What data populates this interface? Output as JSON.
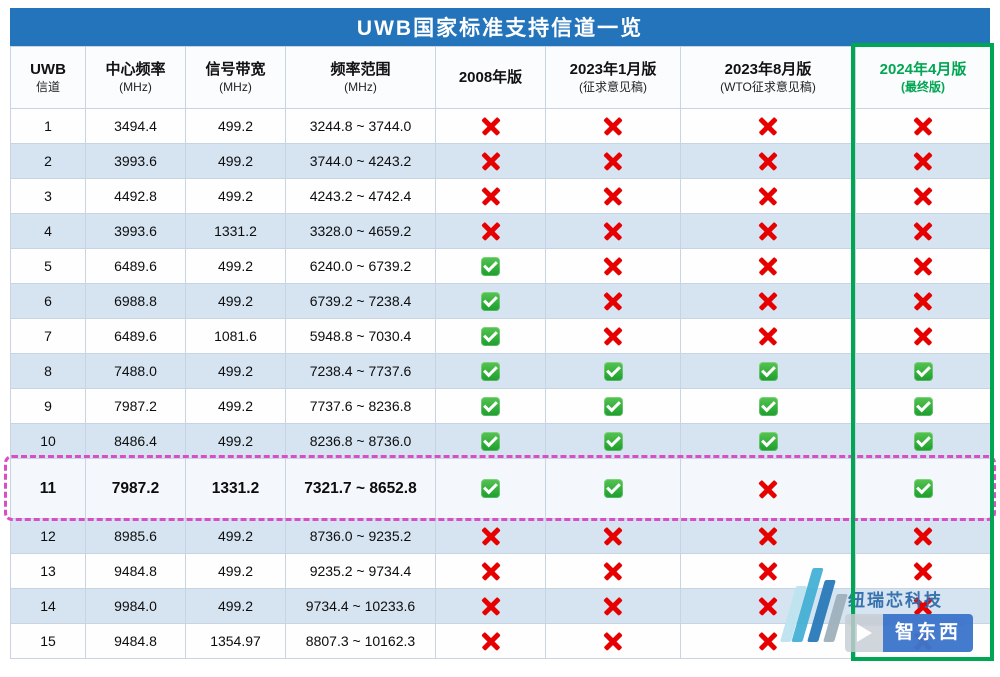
{
  "title": "UWB国家标准支持信道一览",
  "chart_data": {
    "type": "table",
    "title": "UWB国家标准支持信道一览",
    "columns": [
      {
        "line1": "UWB",
        "line2": "信道"
      },
      {
        "line1": "中心频率",
        "line2": "(MHz)"
      },
      {
        "line1": "信号带宽",
        "line2": "(MHz)"
      },
      {
        "line1": "频率范围",
        "line2": "(MHz)"
      },
      {
        "line1": "2008年版",
        "line2": ""
      },
      {
        "line1": "2023年1月版",
        "line2": "(征求意见稿)"
      },
      {
        "line1": "2023年8月版",
        "line2": "(WTO征求意见稿)"
      },
      {
        "line1": "2024年4月版",
        "line2": "(最终版)"
      }
    ],
    "rows": [
      {
        "channel": "1",
        "center_mhz": "3494.4",
        "bandwidth_mhz": "499.2",
        "range_mhz": "3244.8 ~ 3744.0",
        "support": [
          false,
          false,
          false,
          false
        ],
        "highlight": false
      },
      {
        "channel": "2",
        "center_mhz": "3993.6",
        "bandwidth_mhz": "499.2",
        "range_mhz": "3744.0 ~ 4243.2",
        "support": [
          false,
          false,
          false,
          false
        ],
        "highlight": false
      },
      {
        "channel": "3",
        "center_mhz": "4492.8",
        "bandwidth_mhz": "499.2",
        "range_mhz": "4243.2 ~ 4742.4",
        "support": [
          false,
          false,
          false,
          false
        ],
        "highlight": false
      },
      {
        "channel": "4",
        "center_mhz": "3993.6",
        "bandwidth_mhz": "1331.2",
        "range_mhz": "3328.0 ~ 4659.2",
        "support": [
          false,
          false,
          false,
          false
        ],
        "highlight": false
      },
      {
        "channel": "5",
        "center_mhz": "6489.6",
        "bandwidth_mhz": "499.2",
        "range_mhz": "6240.0 ~ 6739.2",
        "support": [
          true,
          false,
          false,
          false
        ],
        "highlight": false
      },
      {
        "channel": "6",
        "center_mhz": "6988.8",
        "bandwidth_mhz": "499.2",
        "range_mhz": "6739.2 ~ 7238.4",
        "support": [
          true,
          false,
          false,
          false
        ],
        "highlight": false
      },
      {
        "channel": "7",
        "center_mhz": "6489.6",
        "bandwidth_mhz": "1081.6",
        "range_mhz": "5948.8 ~ 7030.4",
        "support": [
          true,
          false,
          false,
          false
        ],
        "highlight": false
      },
      {
        "channel": "8",
        "center_mhz": "7488.0",
        "bandwidth_mhz": "499.2",
        "range_mhz": "7238.4 ~ 7737.6",
        "support": [
          true,
          true,
          true,
          true
        ],
        "highlight": false
      },
      {
        "channel": "9",
        "center_mhz": "7987.2",
        "bandwidth_mhz": "499.2",
        "range_mhz": "7737.6 ~ 8236.8",
        "support": [
          true,
          true,
          true,
          true
        ],
        "highlight": false
      },
      {
        "channel": "10",
        "center_mhz": "8486.4",
        "bandwidth_mhz": "499.2",
        "range_mhz": "8236.8 ~ 8736.0",
        "support": [
          true,
          true,
          true,
          true
        ],
        "highlight": false
      },
      {
        "channel": "11",
        "center_mhz": "7987.2",
        "bandwidth_mhz": "1331.2",
        "range_mhz": "7321.7 ~ 8652.8",
        "support": [
          true,
          true,
          false,
          true
        ],
        "highlight": true
      },
      {
        "channel": "12",
        "center_mhz": "8985.6",
        "bandwidth_mhz": "499.2",
        "range_mhz": "8736.0 ~ 9235.2",
        "support": [
          false,
          false,
          false,
          false
        ],
        "highlight": false
      },
      {
        "channel": "13",
        "center_mhz": "9484.8",
        "bandwidth_mhz": "499.2",
        "range_mhz": "9235.2 ~ 9734.4",
        "support": [
          false,
          false,
          false,
          false
        ],
        "highlight": false
      },
      {
        "channel": "14",
        "center_mhz": "9984.0",
        "bandwidth_mhz": "499.2",
        "range_mhz": "9734.4 ~ 10233.6",
        "support": [
          false,
          false,
          false,
          false
        ],
        "highlight": false
      },
      {
        "channel": "15",
        "center_mhz": "9484.8",
        "bandwidth_mhz": "1354.97",
        "range_mhz": "8807.3 ~ 10162.3",
        "support": [
          false,
          false,
          false,
          false
        ],
        "highlight": false
      }
    ]
  },
  "colors": {
    "title_bar_blue": "#2474bb",
    "row_alt_blue": "#d6e4f2",
    "check_green": "#1b9e2c",
    "cross_red": "#e60000",
    "final_column_green": "#00a651",
    "highlight_dashed_pink": "#d94fc3"
  },
  "watermark": {
    "company": "纽瑞芯科技",
    "badge": "智东西"
  }
}
